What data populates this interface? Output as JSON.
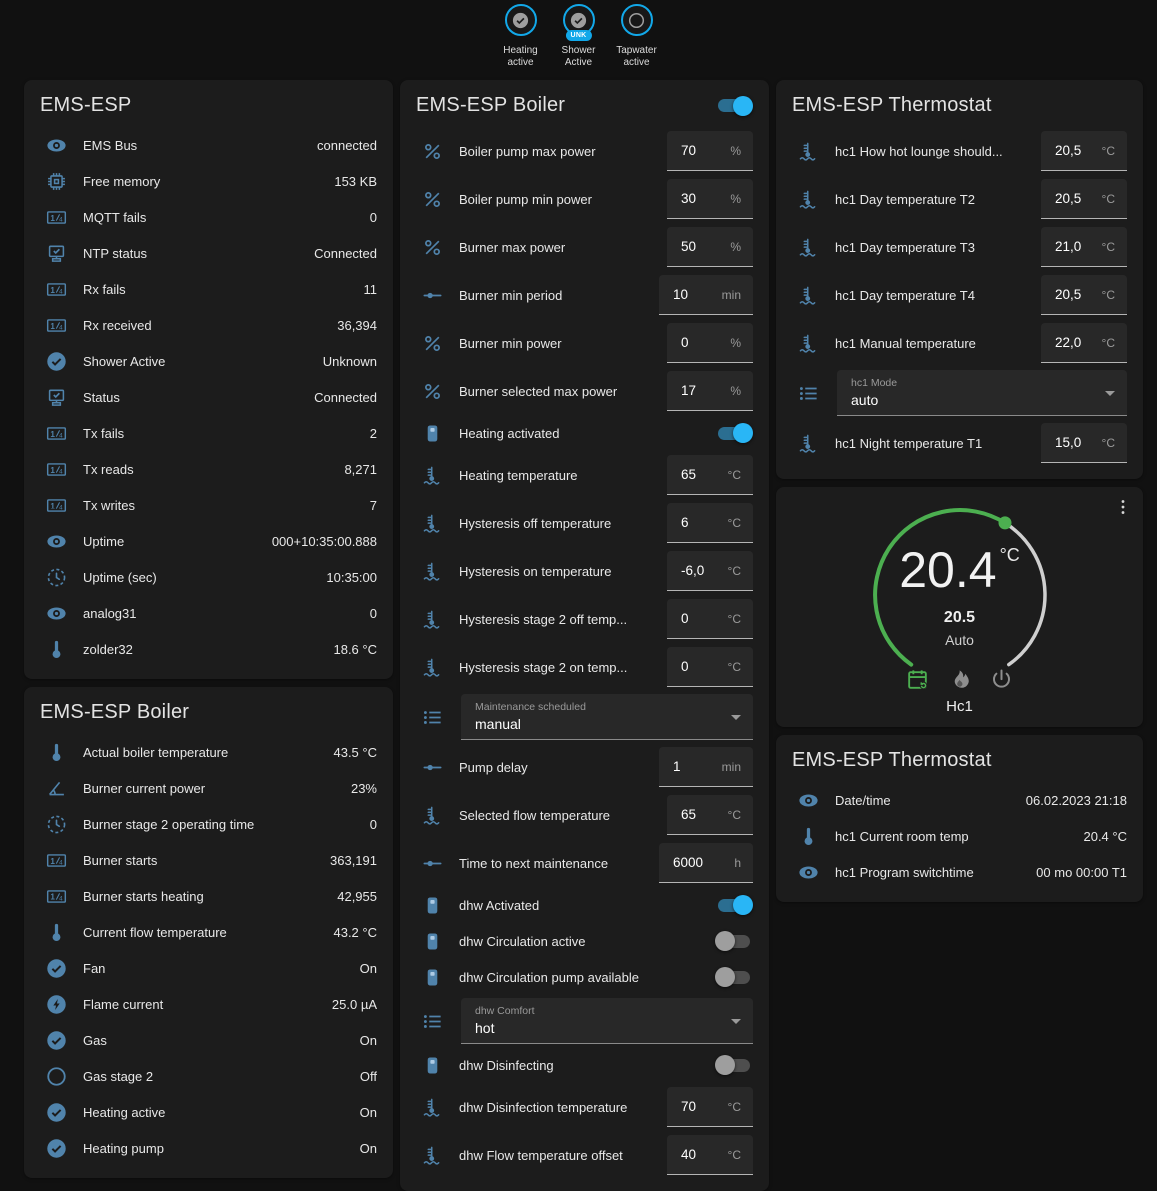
{
  "colors": {
    "bg": "#111111",
    "card": "#1c1c1c",
    "icon": "#5083ab",
    "accent": "#29b6f6",
    "accent-dim": "#2b6e91",
    "green": "#4caf50",
    "badge": "#12a8e9",
    "input": "#282828"
  },
  "badges": [
    {
      "label": "Heating active",
      "icon": "check-circle",
      "status_badge": ""
    },
    {
      "label": "Shower Active",
      "icon": "check-circle",
      "status_badge": "UNK"
    },
    {
      "label": "Tapwater active",
      "icon": "circle-outline",
      "status_badge": ""
    }
  ],
  "cards": {
    "system": {
      "title": "EMS-ESP",
      "rows": [
        {
          "icon": "eye",
          "label": "EMS Bus",
          "value": "connected"
        },
        {
          "icon": "chip",
          "label": "Free memory",
          "value": "153 KB"
        },
        {
          "icon": "counter",
          "label": "MQTT fails",
          "value": "0"
        },
        {
          "icon": "network",
          "label": "NTP status",
          "value": "Connected"
        },
        {
          "icon": "counter",
          "label": "Rx fails",
          "value": "11"
        },
        {
          "icon": "counter",
          "label": "Rx received",
          "value": "36,394"
        },
        {
          "icon": "check-circle",
          "label": "Shower Active",
          "value": "Unknown"
        },
        {
          "icon": "network",
          "label": "Status",
          "value": "Connected"
        },
        {
          "icon": "counter",
          "label": "Tx fails",
          "value": "2"
        },
        {
          "icon": "counter",
          "label": "Tx reads",
          "value": "8,271"
        },
        {
          "icon": "counter",
          "label": "Tx writes",
          "value": "7"
        },
        {
          "icon": "eye",
          "label": "Uptime",
          "value": "000+10:35:00.888"
        },
        {
          "icon": "clock",
          "label": "Uptime (sec)",
          "value": "10:35:00"
        },
        {
          "icon": "eye",
          "label": "analog31",
          "value": "0"
        },
        {
          "icon": "thermometer",
          "label": "zolder32",
          "value": "18.6 °C"
        }
      ]
    },
    "boiler_sensors": {
      "title": "EMS-ESP Boiler",
      "rows": [
        {
          "icon": "thermometer",
          "label": "Actual boiler temperature",
          "value": "43.5 °C"
        },
        {
          "icon": "angle",
          "label": "Burner current power",
          "value": "23%"
        },
        {
          "icon": "clock",
          "label": "Burner stage 2 operating time",
          "value": "0"
        },
        {
          "icon": "counter",
          "label": "Burner starts",
          "value": "363,191"
        },
        {
          "icon": "counter",
          "label": "Burner starts heating",
          "value": "42,955"
        },
        {
          "icon": "thermometer",
          "label": "Current flow temperature",
          "value": "43.2 °C"
        },
        {
          "icon": "check-circle",
          "label": "Fan",
          "value": "On"
        },
        {
          "icon": "flash-circle",
          "label": "Flame current",
          "value": "25.0 µA"
        },
        {
          "icon": "check-circle",
          "label": "Gas",
          "value": "On"
        },
        {
          "icon": "circle-outline",
          "label": "Gas stage 2",
          "value": "Off"
        },
        {
          "icon": "check-circle",
          "label": "Heating active",
          "value": "On"
        },
        {
          "icon": "check-circle",
          "label": "Heating pump",
          "value": "On"
        }
      ]
    },
    "boiler_controls": {
      "title": "EMS-ESP Boiler",
      "enabled": "on",
      "rows": [
        {
          "type": "number",
          "icon": "percent",
          "label": "Boiler pump max power",
          "value": "70",
          "unit": "%"
        },
        {
          "type": "number",
          "icon": "percent",
          "label": "Boiler pump min power",
          "value": "30",
          "unit": "%"
        },
        {
          "type": "number",
          "icon": "percent",
          "label": "Burner max power",
          "value": "50",
          "unit": "%"
        },
        {
          "type": "number",
          "icon": "slider",
          "label": "Burner min period",
          "value": "10",
          "unit": "min"
        },
        {
          "type": "number",
          "icon": "percent",
          "label": "Burner min power",
          "value": "0",
          "unit": "%"
        },
        {
          "type": "number",
          "icon": "percent",
          "label": "Burner selected max power",
          "value": "17",
          "unit": "%"
        },
        {
          "type": "toggle",
          "icon": "boiler",
          "label": "Heating activated",
          "value": "on"
        },
        {
          "type": "number",
          "icon": "thermo-water",
          "label": "Heating temperature",
          "value": "65",
          "unit": "°C"
        },
        {
          "type": "number",
          "icon": "thermo-water",
          "label": "Hysteresis off temperature",
          "value": "6",
          "unit": "°C"
        },
        {
          "type": "number",
          "icon": "thermo-water",
          "label": "Hysteresis on temperature",
          "value": "-6,0",
          "unit": "°C"
        },
        {
          "type": "number",
          "icon": "thermo-water",
          "label": "Hysteresis stage 2 off temp...",
          "value": "0",
          "unit": "°C"
        },
        {
          "type": "number",
          "icon": "thermo-water",
          "label": "Hysteresis stage 2 on temp...",
          "value": "0",
          "unit": "°C"
        },
        {
          "type": "select",
          "icon": "list",
          "label": "Maintenance scheduled",
          "value": "manual"
        },
        {
          "type": "number",
          "icon": "slider",
          "label": "Pump delay",
          "value": "1",
          "unit": "min"
        },
        {
          "type": "number",
          "icon": "thermo-water",
          "label": "Selected flow temperature",
          "value": "65",
          "unit": "°C"
        },
        {
          "type": "number",
          "icon": "slider",
          "label": "Time to next maintenance",
          "value": "6000",
          "unit": "h"
        },
        {
          "type": "toggle",
          "icon": "boiler",
          "label": "dhw Activated",
          "value": "on"
        },
        {
          "type": "toggle",
          "icon": "boiler",
          "label": "dhw Circulation active",
          "value": "off"
        },
        {
          "type": "toggle",
          "icon": "boiler",
          "label": "dhw Circulation pump available",
          "value": "off"
        },
        {
          "type": "select",
          "icon": "list",
          "label": "dhw Comfort",
          "value": "hot"
        },
        {
          "type": "toggle",
          "icon": "boiler",
          "label": "dhw Disinfecting",
          "value": "off"
        },
        {
          "type": "number",
          "icon": "thermo-water",
          "label": "dhw Disinfection temperature",
          "value": "70",
          "unit": "°C"
        },
        {
          "type": "number",
          "icon": "thermo-water",
          "label": "dhw Flow temperature offset",
          "value": "40",
          "unit": "°C"
        }
      ]
    },
    "thermostat_controls": {
      "title": "EMS-ESP Thermostat",
      "rows": [
        {
          "type": "number",
          "icon": "thermo-water",
          "label": "hc1 How hot lounge should...",
          "value": "20,5",
          "unit": "°C"
        },
        {
          "type": "number",
          "icon": "thermo-water",
          "label": "hc1 Day temperature T2",
          "value": "20,5",
          "unit": "°C"
        },
        {
          "type": "number",
          "icon": "thermo-water",
          "label": "hc1 Day temperature T3",
          "value": "21,0",
          "unit": "°C"
        },
        {
          "type": "number",
          "icon": "thermo-water",
          "label": "hc1 Day temperature T4",
          "value": "20,5",
          "unit": "°C"
        },
        {
          "type": "number",
          "icon": "thermo-water",
          "label": "hc1 Manual temperature",
          "value": "22,0",
          "unit": "°C"
        },
        {
          "type": "select",
          "icon": "list",
          "label": "hc1 Mode",
          "value": "auto"
        },
        {
          "type": "number",
          "icon": "thermo-water",
          "label": "hc1 Night temperature T1",
          "value": "15,0",
          "unit": "°C"
        }
      ]
    },
    "gauge": {
      "temp": "20.4",
      "unit": "°C",
      "setpoint": "20.5",
      "mode_label": "Auto",
      "name": "Hc1",
      "modes": [
        "calendar-sync",
        "fire",
        "power"
      ],
      "active_mode": "calendar-sync"
    },
    "thermostat_sensors": {
      "title": "EMS-ESP Thermostat",
      "rows": [
        {
          "icon": "eye",
          "label": "Date/time",
          "value": "06.02.2023 21:18"
        },
        {
          "icon": "thermometer",
          "label": "hc1 Current room temp",
          "value": "20.4 °C"
        },
        {
          "icon": "eye",
          "label": "hc1 Program switchtime",
          "value": "00 mo 00:00 T1"
        }
      ]
    }
  }
}
